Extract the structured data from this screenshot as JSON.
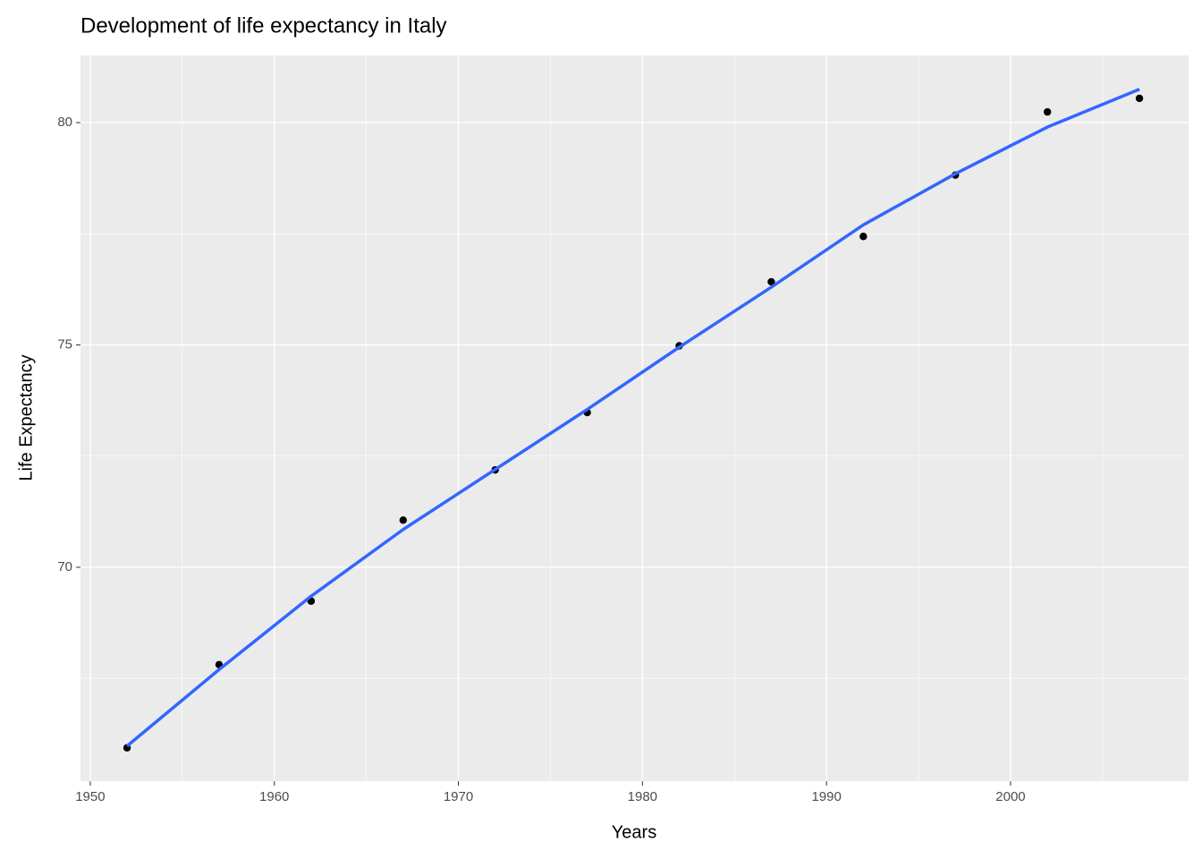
{
  "chart_data": {
    "type": "scatter",
    "title": "Development of life expectancy in Italy",
    "xlabel": "Years",
    "ylabel": "Life Expectancy",
    "x": [
      1952,
      1957,
      1962,
      1967,
      1972,
      1977,
      1982,
      1987,
      1992,
      1997,
      2002,
      2007
    ],
    "series": [
      {
        "type": "scatter",
        "color": "#000000",
        "values": [
          65.94,
          67.81,
          69.24,
          71.06,
          72.19,
          73.48,
          74.98,
          76.42,
          77.44,
          78.82,
          80.24,
          80.546
        ]
      },
      {
        "type": "line",
        "color": "#3366ff",
        "values": [
          65.98,
          67.7,
          69.35,
          70.85,
          72.2,
          73.55,
          74.95,
          76.3,
          77.7,
          78.85,
          79.9,
          80.75
        ]
      }
    ],
    "xlim": [
      1949.47,
      2009.67
    ],
    "ylim": [
      65.19,
      81.51
    ],
    "xticks": [
      1950,
      1960,
      1970,
      1980,
      1990,
      2000
    ],
    "yticks": [
      70,
      75,
      80
    ],
    "xminor": [
      1955,
      1965,
      1975,
      1985,
      1995,
      2005
    ],
    "yminor": [
      67.5,
      72.5,
      77.5
    ],
    "grid": true,
    "panel_color": "#ebebeb"
  }
}
